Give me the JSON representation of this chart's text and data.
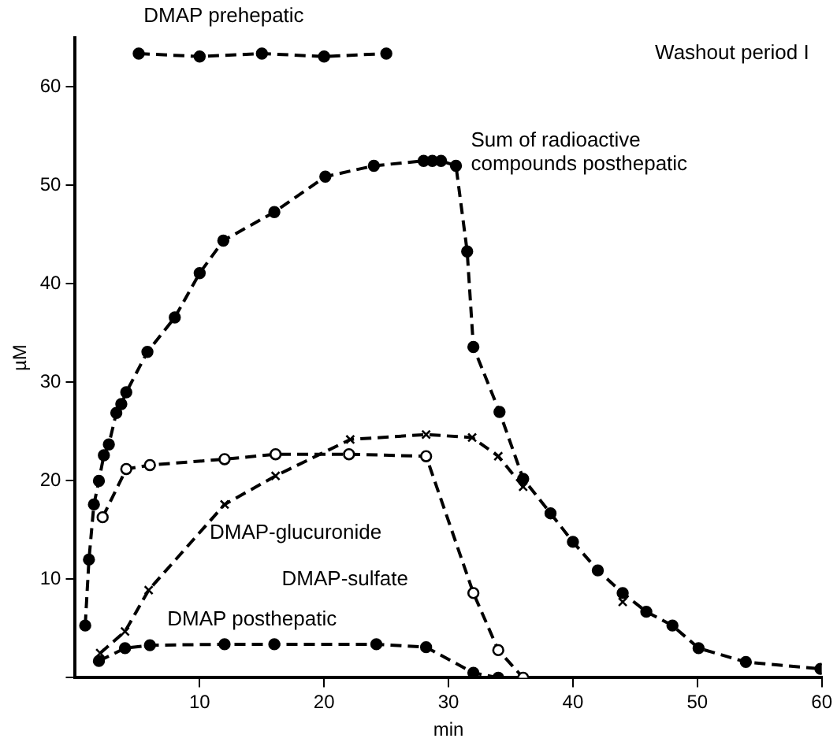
{
  "chart_data": {
    "type": "line",
    "xlabel": "min",
    "ylabel": "µM",
    "annotations": [
      "Washout period I"
    ],
    "xlim": [
      0,
      60
    ],
    "ylim": [
      0,
      65
    ],
    "xticks": [
      10,
      20,
      30,
      40,
      50,
      60
    ],
    "yticks": [
      {
        "value": 0,
        "label": null
      },
      10,
      20,
      30,
      40,
      50,
      60
    ],
    "grid": false,
    "legend": false,
    "series": [
      {
        "name": "DMAP prehepatic",
        "color": "#000000",
        "marker": "circle",
        "line_style": "dashed",
        "x": [
          5.1,
          10,
          15,
          20,
          25
        ],
        "values": [
          63.4,
          63.1,
          63.4,
          63.1,
          63.4
        ]
      },
      {
        "name": "Sum of radioactive compounds posthepatic",
        "color": "#000000",
        "marker": "circle",
        "line_style": "dashed",
        "x": [
          0.8,
          1.1,
          1.5,
          1.9,
          2.3,
          2.7,
          3.3,
          3.7,
          4.1,
          5.8,
          8,
          10,
          11.9,
          16,
          20.1,
          24,
          28,
          28.7,
          29.4,
          30.6,
          31.5,
          32,
          34.1,
          36,
          38.2,
          40,
          42,
          44,
          45.9,
          48,
          50.1,
          53.9,
          59.9
        ],
        "values": [
          5.3,
          12,
          17.6,
          20,
          22.6,
          23.7,
          26.9,
          27.8,
          29,
          33.1,
          36.6,
          41.1,
          44.4,
          47.3,
          50.9,
          52,
          52.5,
          52.5,
          52.5,
          52,
          43.3,
          33.6,
          27,
          20.2,
          16.7,
          13.8,
          10.9,
          8.6,
          6.7,
          5.3,
          3,
          1.6,
          0.9
        ]
      },
      {
        "name": "DMAP-glucuronide",
        "color": "#000000",
        "marker": "cross",
        "line_style": "dashed",
        "x": [
          2,
          4,
          5.9,
          12,
          16.1,
          22.1,
          28.2,
          31.9,
          34,
          36,
          40,
          44
        ],
        "values": [
          2.5,
          4.7,
          8.9,
          17.6,
          20.5,
          24.2,
          24.7,
          24.4,
          22.5,
          19.4,
          null,
          7.7
        ]
      },
      {
        "name": "DMAP-sulfate",
        "color": "#000000",
        "marker": "circle",
        "line_style": "dashed",
        "x": [
          2.2,
          4.1,
          6,
          12,
          16.1,
          22,
          28.2,
          32,
          34,
          36
        ],
        "values": [
          16.3,
          21.2,
          21.6,
          22.2,
          22.7,
          22.7,
          22.5,
          8.6,
          2.8,
          0
        ]
      },
      {
        "name": "DMAP posthepatic",
        "color": "#000000",
        "marker": "circle",
        "line_style": "dashed",
        "x": [
          1.9,
          4,
          6,
          12,
          16,
          24.2,
          28.2,
          32,
          34
        ],
        "values": [
          1.7,
          3,
          3.3,
          3.4,
          3.4,
          3.4,
          3.1,
          0.5,
          0
        ]
      }
    ]
  }
}
